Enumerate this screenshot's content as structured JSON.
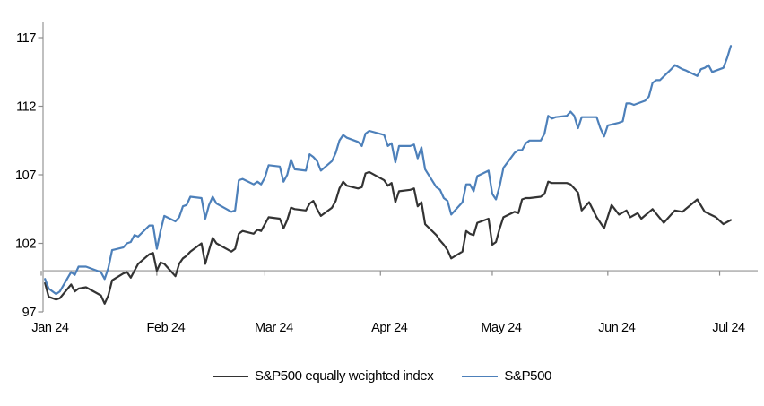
{
  "chart_data": {
    "type": "line",
    "title": "",
    "xlabel": "",
    "ylabel": "",
    "x_axis": {
      "tick_labels": [
        "Jan 24",
        "Feb 24",
        "Mar 24",
        "Apr 24",
        "May 24",
        "Jun 24",
        "Jul 24"
      ],
      "tick_day_offsets": [
        0,
        31,
        60,
        91,
        121,
        152,
        182
      ],
      "domain_days": [
        0,
        185
      ]
    },
    "y_axis": {
      "tick_labels": [
        "97",
        "102",
        "107",
        "112",
        "117"
      ],
      "ticks": [
        97,
        102,
        107,
        112,
        117
      ],
      "ylim": [
        97,
        117
      ],
      "baseline_value": 100
    },
    "grid": "single horizontal baseline at 100 with month tick marks",
    "legend_position": "bottom-center",
    "colors": {
      "equal_weight_line": "#333333",
      "sp500_line": "#4d80ba",
      "axis_gray": "#a6a6a6",
      "tick_gray": "#8c8c8c"
    },
    "series": [
      {
        "name": "S&P500 equally weighted index",
        "color": "#333333",
        "points": [
          [
            1,
            99.1
          ],
          [
            2,
            98.1
          ],
          [
            4,
            97.9
          ],
          [
            5,
            98.0
          ],
          [
            8,
            99.0
          ],
          [
            9,
            98.5
          ],
          [
            10,
            98.7
          ],
          [
            12,
            98.8
          ],
          [
            16,
            98.2
          ],
          [
            17,
            97.6
          ],
          [
            18,
            98.2
          ],
          [
            19,
            99.3
          ],
          [
            22,
            99.8
          ],
          [
            23,
            99.9
          ],
          [
            24,
            99.5
          ],
          [
            25,
            100.0
          ],
          [
            26,
            100.5
          ],
          [
            29,
            101.2
          ],
          [
            30,
            101.3
          ],
          [
            31,
            100.0
          ],
          [
            32,
            100.6
          ],
          [
            33,
            100.5
          ],
          [
            36,
            99.6
          ],
          [
            37,
            100.5
          ],
          [
            38,
            100.9
          ],
          [
            39,
            101.1
          ],
          [
            40,
            101.4
          ],
          [
            43,
            102.0
          ],
          [
            44,
            100.5
          ],
          [
            45,
            101.5
          ],
          [
            46,
            102.4
          ],
          [
            47,
            102.0
          ],
          [
            51,
            101.4
          ],
          [
            52,
            101.6
          ],
          [
            53,
            102.7
          ],
          [
            54,
            102.9
          ],
          [
            57,
            102.7
          ],
          [
            58,
            103.0
          ],
          [
            59,
            102.9
          ],
          [
            60,
            103.4
          ],
          [
            61,
            103.9
          ],
          [
            64,
            103.8
          ],
          [
            65,
            103.1
          ],
          [
            66,
            103.7
          ],
          [
            67,
            104.6
          ],
          [
            68,
            104.5
          ],
          [
            71,
            104.4
          ],
          [
            72,
            104.9
          ],
          [
            73,
            105.1
          ],
          [
            74,
            104.5
          ],
          [
            75,
            104.0
          ],
          [
            78,
            104.6
          ],
          [
            79,
            105.1
          ],
          [
            80,
            106.0
          ],
          [
            81,
            106.5
          ],
          [
            82,
            106.2
          ],
          [
            85,
            106.0
          ],
          [
            86,
            106.1
          ],
          [
            87,
            107.1
          ],
          [
            88,
            107.2
          ],
          [
            92,
            106.6
          ],
          [
            93,
            106.2
          ],
          [
            94,
            106.4
          ],
          [
            95,
            105.0
          ],
          [
            96,
            105.8
          ],
          [
            99,
            105.9
          ],
          [
            100,
            106.0
          ],
          [
            101,
            104.7
          ],
          [
            102,
            105.0
          ],
          [
            103,
            103.4
          ],
          [
            106,
            102.6
          ],
          [
            107,
            102.2
          ],
          [
            108,
            101.9
          ],
          [
            109,
            101.5
          ],
          [
            110,
            100.9
          ],
          [
            113,
            101.4
          ],
          [
            114,
            102.9
          ],
          [
            115,
            102.7
          ],
          [
            116,
            102.6
          ],
          [
            117,
            103.5
          ],
          [
            120,
            103.8
          ],
          [
            121,
            101.9
          ],
          [
            122,
            102.1
          ],
          [
            123,
            103.1
          ],
          [
            124,
            103.9
          ],
          [
            127,
            104.3
          ],
          [
            128,
            104.2
          ],
          [
            129,
            105.2
          ],
          [
            130,
            105.3
          ],
          [
            131,
            105.3
          ],
          [
            134,
            105.4
          ],
          [
            135,
            105.6
          ],
          [
            136,
            106.5
          ],
          [
            137,
            106.4
          ],
          [
            138,
            106.4
          ],
          [
            141,
            106.4
          ],
          [
            142,
            106.3
          ],
          [
            144,
            105.7
          ],
          [
            145,
            104.4
          ],
          [
            147,
            105.0
          ],
          [
            149,
            103.9
          ],
          [
            151,
            103.1
          ],
          [
            153,
            104.8
          ],
          [
            155,
            104.1
          ],
          [
            157,
            104.4
          ],
          [
            158,
            103.9
          ],
          [
            160,
            104.2
          ],
          [
            161,
            103.8
          ],
          [
            164,
            104.5
          ],
          [
            167,
            103.5
          ],
          [
            170,
            104.4
          ],
          [
            172,
            104.3
          ],
          [
            176,
            105.2
          ],
          [
            178,
            104.3
          ],
          [
            181,
            103.9
          ],
          [
            183,
            103.4
          ],
          [
            185,
            103.7
          ]
        ]
      },
      {
        "name": "S&P500",
        "color": "#4d80ba",
        "points": [
          [
            1,
            99.4
          ],
          [
            2,
            98.7
          ],
          [
            4,
            98.3
          ],
          [
            5,
            98.5
          ],
          [
            8,
            99.9
          ],
          [
            9,
            99.7
          ],
          [
            10,
            100.3
          ],
          [
            12,
            100.3
          ],
          [
            16,
            99.9
          ],
          [
            17,
            99.4
          ],
          [
            18,
            100.2
          ],
          [
            19,
            101.5
          ],
          [
            22,
            101.7
          ],
          [
            23,
            102.0
          ],
          [
            24,
            102.1
          ],
          [
            25,
            102.6
          ],
          [
            26,
            102.5
          ],
          [
            29,
            103.3
          ],
          [
            30,
            103.3
          ],
          [
            31,
            101.6
          ],
          [
            32,
            102.9
          ],
          [
            33,
            104.0
          ],
          [
            36,
            103.6
          ],
          [
            37,
            103.9
          ],
          [
            38,
            104.7
          ],
          [
            39,
            104.8
          ],
          [
            40,
            105.4
          ],
          [
            43,
            105.3
          ],
          [
            44,
            103.8
          ],
          [
            45,
            104.8
          ],
          [
            46,
            105.4
          ],
          [
            47,
            104.9
          ],
          [
            51,
            104.3
          ],
          [
            52,
            104.4
          ],
          [
            53,
            106.6
          ],
          [
            54,
            106.7
          ],
          [
            57,
            106.3
          ],
          [
            58,
            106.5
          ],
          [
            59,
            106.3
          ],
          [
            60,
            106.8
          ],
          [
            61,
            107.7
          ],
          [
            64,
            107.6
          ],
          [
            65,
            106.5
          ],
          [
            66,
            107.0
          ],
          [
            67,
            108.1
          ],
          [
            68,
            107.4
          ],
          [
            71,
            107.3
          ],
          [
            72,
            108.5
          ],
          [
            73,
            108.3
          ],
          [
            74,
            108.0
          ],
          [
            75,
            107.3
          ],
          [
            78,
            108.0
          ],
          [
            79,
            108.6
          ],
          [
            80,
            109.5
          ],
          [
            81,
            109.9
          ],
          [
            82,
            109.7
          ],
          [
            85,
            109.4
          ],
          [
            86,
            109.1
          ],
          [
            87,
            110.0
          ],
          [
            88,
            110.2
          ],
          [
            92,
            109.9
          ],
          [
            93,
            109.1
          ],
          [
            94,
            109.3
          ],
          [
            95,
            107.9
          ],
          [
            96,
            109.1
          ],
          [
            99,
            109.1
          ],
          [
            100,
            109.2
          ],
          [
            101,
            108.2
          ],
          [
            102,
            109.0
          ],
          [
            103,
            107.4
          ],
          [
            106,
            106.1
          ],
          [
            107,
            105.9
          ],
          [
            108,
            105.3
          ],
          [
            109,
            105.1
          ],
          [
            110,
            104.1
          ],
          [
            113,
            105.0
          ],
          [
            114,
            106.3
          ],
          [
            115,
            106.3
          ],
          [
            116,
            105.8
          ],
          [
            117,
            106.9
          ],
          [
            120,
            107.3
          ],
          [
            121,
            105.6
          ],
          [
            122,
            105.2
          ],
          [
            123,
            106.2
          ],
          [
            124,
            107.5
          ],
          [
            127,
            108.6
          ],
          [
            128,
            108.8
          ],
          [
            129,
            108.8
          ],
          [
            130,
            109.3
          ],
          [
            131,
            109.5
          ],
          [
            134,
            109.5
          ],
          [
            135,
            110.0
          ],
          [
            136,
            111.3
          ],
          [
            137,
            111.1
          ],
          [
            138,
            111.2
          ],
          [
            141,
            111.3
          ],
          [
            142,
            111.6
          ],
          [
            143,
            111.3
          ],
          [
            144,
            110.4
          ],
          [
            145,
            111.2
          ],
          [
            149,
            111.2
          ],
          [
            150,
            110.4
          ],
          [
            151,
            109.8
          ],
          [
            152,
            110.6
          ],
          [
            155,
            110.8
          ],
          [
            156,
            110.9
          ],
          [
            157,
            112.2
          ],
          [
            158,
            112.2
          ],
          [
            159,
            112.1
          ],
          [
            162,
            112.4
          ],
          [
            163,
            112.7
          ],
          [
            164,
            113.7
          ],
          [
            165,
            113.9
          ],
          [
            166,
            113.9
          ],
          [
            169,
            114.7
          ],
          [
            170,
            115.0
          ],
          [
            172,
            114.7
          ],
          [
            173,
            114.6
          ],
          [
            176,
            114.2
          ],
          [
            177,
            114.7
          ],
          [
            178,
            114.8
          ],
          [
            179,
            115.0
          ],
          [
            180,
            114.5
          ],
          [
            183,
            114.8
          ],
          [
            184,
            115.5
          ],
          [
            185,
            116.4
          ]
        ]
      }
    ]
  },
  "legend": {
    "items": [
      {
        "label": "S&P500 equally weighted index"
      },
      {
        "label": "S&P500"
      }
    ]
  }
}
